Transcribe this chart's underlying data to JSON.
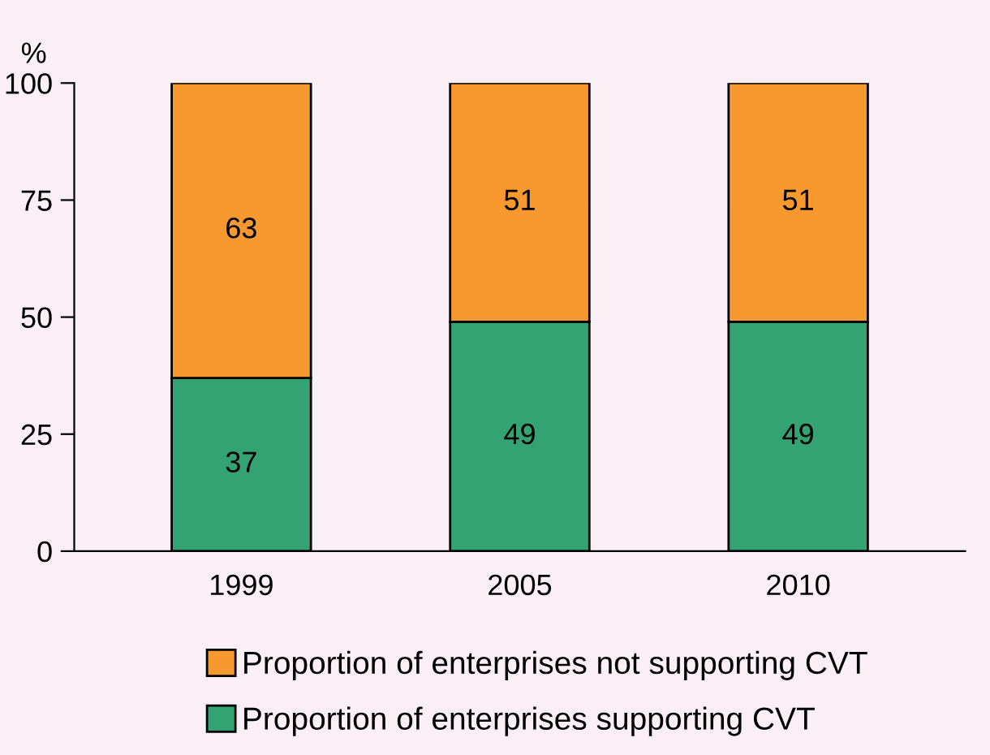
{
  "chart_data": {
    "type": "bar",
    "stacked": true,
    "ylabel": "%",
    "categories": [
      "1999",
      "2005",
      "2010"
    ],
    "series": [
      {
        "name": "Proportion of enterprises supporting CVT",
        "color": "#33a374",
        "values": [
          37,
          49,
          49
        ]
      },
      {
        "name": "Proportion of enterprises not supporting CVT",
        "color": "#f7992e",
        "values": [
          63,
          51,
          51
        ]
      }
    ],
    "ylim": [
      0,
      100
    ],
    "yticks": [
      0,
      25,
      50,
      75,
      100
    ],
    "data_labels": true,
    "legend": "bottom",
    "grid": false
  }
}
